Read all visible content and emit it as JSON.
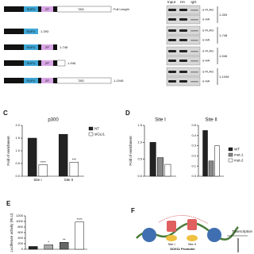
{
  "panel_a": {
    "domains": {
      "sufu": "SUFU",
      "zf": "ZF",
      "tad": "TAD"
    },
    "constructs": [
      "Full Length",
      "1-393",
      "1-748",
      "1-946",
      "1-1046"
    ]
  },
  "panel_b": {
    "lanes": [
      "Input",
      "HA",
      "IgG"
    ],
    "antibodies": {
      "flag": "α-FLAG",
      "ha": "α-HA"
    },
    "groups": [
      "1-393",
      "1-748",
      "1-946",
      "1-1046"
    ]
  },
  "chart_data": [
    {
      "type": "bar",
      "panel": "C",
      "title": "p300",
      "ylabel": "Fold of enrichment",
      "categories": [
        "Site I",
        "Site II"
      ],
      "series": [
        {
          "name": "NT",
          "color": "#222222",
          "values": [
            1.5,
            1.65
          ]
        },
        {
          "name": "siGLI1",
          "color": "#ffffff",
          "values": [
            0.45,
            0.55
          ],
          "stars": [
            "****",
            "***"
          ]
        }
      ],
      "ylim": [
        0,
        2
      ],
      "yticks": [
        {
          "value": 0,
          "label": "0.0"
        },
        {
          "value": 0.5,
          "label": "0.5"
        },
        {
          "value": 1,
          "label": "1.0"
        },
        {
          "value": 1.5,
          "label": "1.5"
        },
        {
          "value": 2,
          "label": "2.0"
        }
      ]
    },
    {
      "type": "bar",
      "panel": "D",
      "title": "Site I",
      "ylabel": "Fold of enrichment",
      "categories": [
        null
      ],
      "series": [
        {
          "name": "WT",
          "color": "#222222",
          "values": [
            1.0
          ]
        },
        {
          "name": "mut-1",
          "color": "#888888",
          "values": [
            0.55
          ]
        },
        {
          "name": "mut-2",
          "color": "#ffffff",
          "values": [
            0.35
          ]
        }
      ],
      "ylim": [
        0,
        1.5
      ],
      "yticks": [
        {
          "value": 0,
          "label": "0.0"
        },
        {
          "value": 0.5,
          "label": "0.5"
        },
        {
          "value": 1,
          "label": "1.0"
        },
        {
          "value": 1.5,
          "label": "1.5"
        }
      ]
    },
    {
      "type": "bar",
      "title": "Site II",
      "categories": [
        null
      ],
      "series": [
        {
          "color": "#222222",
          "values": [
            0.45
          ]
        },
        {
          "color": "#888888",
          "values": [
            0.15
          ]
        },
        {
          "color": "#ffffff",
          "values": [
            0.3
          ]
        }
      ],
      "ylim": [
        0,
        0.5
      ],
      "yticks": [
        {
          "value": 0,
          "label": "0.0"
        },
        {
          "value": 0.1,
          "label": "0.1"
        },
        {
          "value": 0.2,
          "label": "0.2"
        },
        {
          "value": 0.3,
          "label": "0.3"
        },
        {
          "value": 0.4,
          "label": "0.4"
        },
        {
          "value": 0.5,
          "label": "0.5"
        }
      ]
    },
    {
      "type": "bar",
      "panel": "E",
      "ylabel": "Luciferase activity (RLU)",
      "categories": [
        null,
        null,
        null,
        null
      ],
      "series": [
        {
          "colors": [
            "#222222",
            "#aaaaaa",
            "#666666",
            "#ffffff"
          ],
          "values": [
            100,
            160,
            250,
            980
          ],
          "stars": [
            null,
            "*",
            "**",
            "****"
          ]
        }
      ],
      "ylim": [
        0,
        1200
      ],
      "yticks": [
        0,
        200,
        400,
        600,
        800,
        1000,
        1200
      ]
    }
  ],
  "panel_f": {
    "panel": "F",
    "promoter": "SOX11 Promoter",
    "sites": [
      "Site I",
      "Site II"
    ],
    "transcription": "Transcription"
  }
}
